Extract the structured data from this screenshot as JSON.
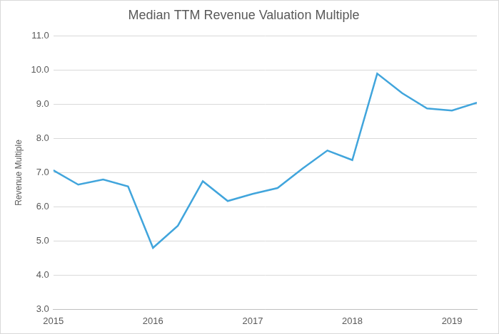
{
  "chart_data": {
    "type": "line",
    "title": "Median TTM Revenue Valuation Multiple",
    "y_label": "Revenue Multiple",
    "x": [
      2015,
      2015.25,
      2015.5,
      2015.75,
      2016,
      2016.25,
      2016.5,
      2016.75,
      2017,
      2017.25,
      2017.5,
      2017.75,
      2018,
      2018.25,
      2018.5,
      2018.75,
      2019,
      2019.25
    ],
    "values": [
      7.07,
      6.65,
      6.8,
      6.6,
      4.8,
      5.45,
      6.75,
      6.17,
      6.38,
      6.55,
      7.12,
      7.65,
      7.37,
      9.9,
      9.33,
      8.88,
      8.82,
      9.05
    ],
    "color": "#41a5dc",
    "xlim": [
      2015,
      2019.25
    ],
    "xticks": [
      2015,
      2016,
      2017,
      2018,
      2019
    ],
    "ylim": [
      3,
      11
    ],
    "yticks": [
      {
        "value": 3,
        "label": "3.0"
      },
      {
        "value": 4,
        "label": "4.0"
      },
      {
        "value": 5,
        "label": "5.0"
      },
      {
        "value": 6,
        "label": "6.0"
      },
      {
        "value": 7,
        "label": "7.0"
      },
      {
        "value": 8,
        "label": "8.0"
      },
      {
        "value": 9,
        "label": "9.0"
      },
      {
        "value": 10,
        "label": "10.0"
      },
      {
        "value": 11,
        "label": "11.0"
      }
    ],
    "grid": "y"
  }
}
